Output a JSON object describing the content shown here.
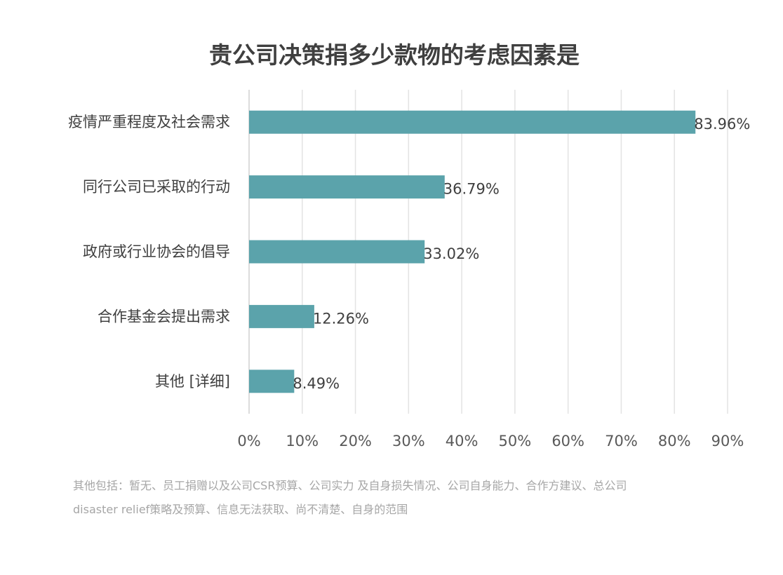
{
  "chart_data": {
    "type": "bar",
    "orientation": "horizontal",
    "title": "贵公司决策捐多少款物的考虑因素是",
    "categories": [
      "疫情严重程度及社会需求",
      "同行公司已采取的行动",
      "政府或行业协会的倡导",
      "合作基金会提出需求",
      "其他 [详细]"
    ],
    "values": [
      83.96,
      36.79,
      33.02,
      12.26,
      8.49
    ],
    "value_labels": [
      "83.96%",
      "36.79%",
      "33.02%",
      "12.26%",
      "8.49%"
    ],
    "xlim": [
      0,
      90
    ],
    "x_ticks": [
      0,
      10,
      20,
      30,
      40,
      50,
      60,
      70,
      80,
      90
    ],
    "x_tick_labels": [
      "0%",
      "10%",
      "20%",
      "30%",
      "40%",
      "50%",
      "60%",
      "70%",
      "80%",
      "90%"
    ],
    "xlabel": "",
    "ylabel": "",
    "grid": "vertical",
    "legend": "none",
    "bar_color": "#5ba3ab"
  },
  "footnote": {
    "line1": "其他包括：暂无、员工捐赠以及公司CSR预算、公司实力 及自身损失情况、公司自身能力、合作方建议、总公司",
    "line2": "disaster relief策略及预算、信息无法获取、尚不清楚、自身的范围"
  }
}
